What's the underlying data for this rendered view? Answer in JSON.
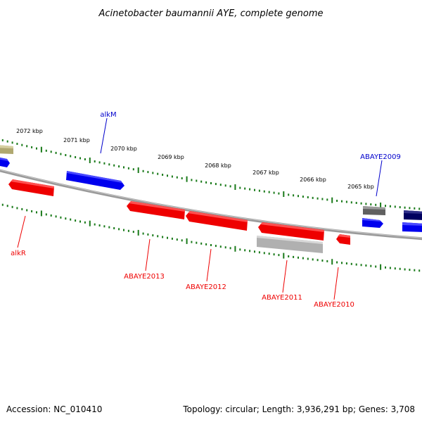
{
  "title": "Acinetobacter baumannii AYE, complete genome",
  "footer": {
    "accession": "Accession: NC_010410",
    "summary": "Topology: circular; Length: 3,936,291 bp; Genes: 3,708"
  },
  "ruler": [
    "2072 kbp",
    "2071 kbp",
    "2070 kbp",
    "2069 kbp",
    "2068 kbp",
    "2067 kbp",
    "2066 kbp",
    "2065 kbp"
  ],
  "gene_labels": {
    "alkM": "alkM",
    "ABAYE2009": "ABAYE2009",
    "alkR": "alkR",
    "ABAYE2013": "ABAYE2013",
    "ABAYE2012": "ABAYE2012",
    "ABAYE2011": "ABAYE2011",
    "ABAYE2010": "ABAYE2010"
  },
  "colors": {
    "blue_gene": "#0000ee",
    "red_gene": "#ee0000",
    "tick_green": "#1a7a1a",
    "backbone": "#808080",
    "navy_gene": "#000066",
    "gray_gene": "#707070",
    "light_gray_gene": "#b4b4b4",
    "olive_gene": "#b0a870"
  }
}
